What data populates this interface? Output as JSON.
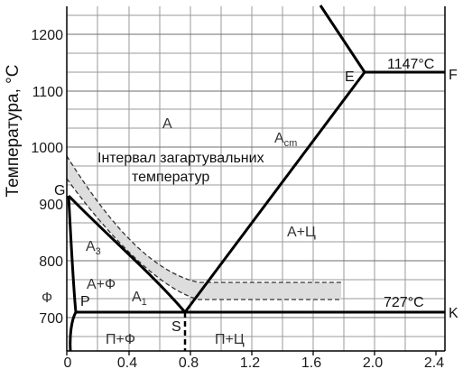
{
  "chart_data": {
    "type": "phase-diagram",
    "xlabel": "",
    "ylabel": "Температура, °С",
    "xlim": [
      0,
      2.6
    ],
    "ylim": [
      690,
      1250
    ],
    "x_ticks": [
      "0",
      "0.4",
      "0.8",
      "1.2",
      "1.6",
      "2.0",
      "2.4"
    ],
    "y_ticks": [
      "700",
      "800",
      "900",
      "1000",
      "1100",
      "1200"
    ],
    "grid": true,
    "points": {
      "G": {
        "label": "G",
        "c": 0,
        "t": 911
      },
      "P": {
        "label": "P",
        "c": 0.02,
        "t": 727
      },
      "S": {
        "label": "S",
        "c": 0.8,
        "t": 727
      },
      "K": {
        "label": "K",
        "c": 2.6,
        "t": 727
      },
      "E": {
        "label": "E",
        "c": 2.14,
        "t": 1147
      },
      "F": {
        "label": "F",
        "c": 2.6,
        "t": 1147
      }
    },
    "temperature_labels": {
      "eutectic": "1147°C",
      "eutectoid": "727°C"
    },
    "phase_labels": {
      "A": "А",
      "A_cm": "А",
      "A_cm_sub": "cm",
      "A3": "А",
      "A3_sub": "3",
      "A1": "А",
      "A1_sub": "1",
      "A_F": "А+Ф",
      "A_C": "А+Ц",
      "F": "Ф",
      "P_F": "П+Ф",
      "P_C": "П+Ц"
    },
    "annotation": {
      "line1": "Інтервал загартувальних",
      "line2": "температур"
    }
  }
}
